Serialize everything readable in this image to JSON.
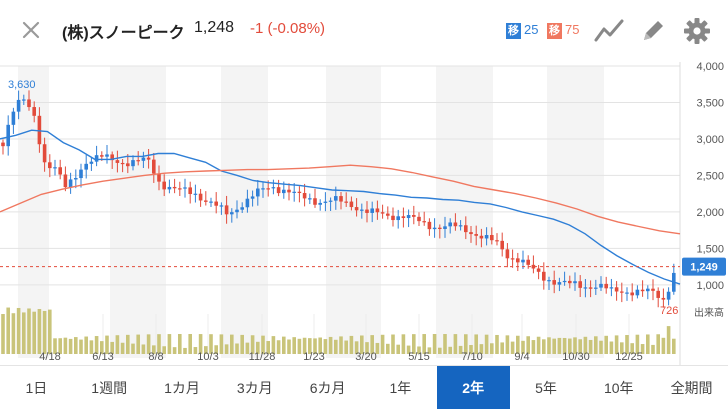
{
  "header": {
    "name": "(株)スノーピーク",
    "price": "1,248",
    "change": "-1 (-0.08%)",
    "ma_short": {
      "badge": "移",
      "value": "25",
      "color": "#2f7fd6"
    },
    "ma_long": {
      "badge": "移",
      "value": "75",
      "color": "#f07860"
    },
    "icons": [
      "close-icon",
      "line-chart-icon",
      "pencil-icon",
      "gear-icon"
    ]
  },
  "chart_data": {
    "type": "candlestick",
    "y_axis": {
      "min": 600,
      "max": 4000,
      "ticks": [
        "4,000",
        "3,500",
        "3,000",
        "2,500",
        "2,000",
        "1,500",
        "1,000"
      ],
      "tick_values": [
        4000,
        3500,
        3000,
        2500,
        2000,
        1500,
        1000
      ]
    },
    "x_tick_labels": [
      "4/18",
      "6/13",
      "8/8",
      "10/3",
      "11/28",
      "1/23",
      "3/20",
      "5/15",
      "7/10",
      "9/4",
      "10/30",
      "12/25"
    ],
    "high_label": "3,630",
    "low_label": "726",
    "current_price_label": "1,249",
    "current_price": 1249,
    "volume_label": "出来高",
    "colors": {
      "up": "#2f7fd6",
      "down": "#e24b3b",
      "ma25": "#2f7fd6",
      "ma75": "#f07860",
      "volume": "#c9c47a"
    },
    "series": [
      {
        "name": "25",
        "points": [
          3000,
          3050,
          3120,
          3100,
          2950,
          2850,
          2720,
          2720,
          2760,
          2760,
          2800,
          2800,
          2740,
          2680,
          2560,
          2500,
          2430,
          2400,
          2380,
          2360,
          2330,
          2300,
          2290,
          2280,
          2250,
          2230,
          2200,
          2190,
          2170,
          2160,
          2130,
          2110,
          2060,
          2000,
          1950,
          1900,
          1820,
          1700,
          1540,
          1400,
          1280,
          1170,
          1080,
          1010
        ]
      },
      {
        "name": "75",
        "points": [
          2000,
          2120,
          2240,
          2310,
          2370,
          2420,
          2460,
          2500,
          2530,
          2550,
          2560,
          2570,
          2580,
          2580,
          2590,
          2600,
          2620,
          2640,
          2620,
          2590,
          2540,
          2480,
          2420,
          2350,
          2300,
          2250,
          2190,
          2120,
          2040,
          1940,
          1860,
          1800,
          1740,
          1700
        ]
      }
    ]
  },
  "periods": {
    "items": [
      "1日",
      "1週間",
      "1カ月",
      "3カ月",
      "6カ月",
      "1年",
      "2年",
      "5年",
      "10年",
      "全期間"
    ],
    "active": "2年"
  }
}
